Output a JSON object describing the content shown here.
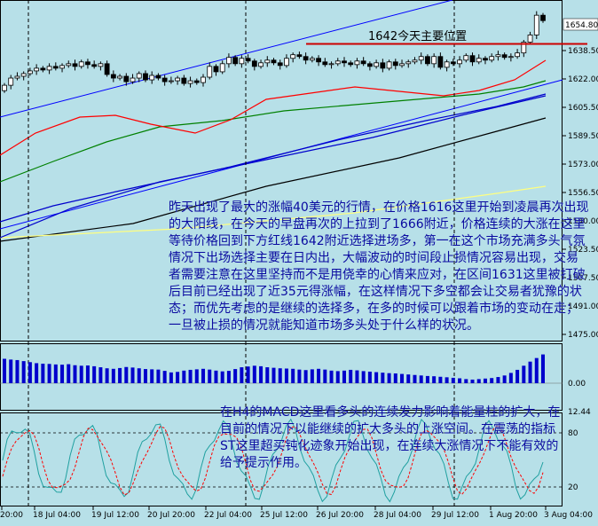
{
  "chart_data": {
    "type": "candlestick",
    "current_price": "1654.80",
    "annotation_label": "1642今天主要位置",
    "y_ticks": [
      "1654.80",
      "1638.50",
      "1622.00",
      "1605.50",
      "1589.50",
      "1573.00",
      "1556.50",
      "1540.00",
      "1523.50",
      "1507.50",
      "1491.00",
      "1475.00"
    ],
    "x_ticks": [
      "20:00",
      "18 Jul 04:00",
      "19 Jul 12:00",
      "20 Jul 20:00",
      "22 Jul 04:00",
      "25 Jul 12:00",
      "26 Jul 20:00",
      "28 Jul 04:00",
      "29 Jul 12:00",
      "1 Aug 20:00",
      "3 Aug 04:00"
    ],
    "macd_ticks": [
      "12.44",
      "0.00"
    ],
    "stoch_ticks": [
      "80",
      "20"
    ],
    "colors": {
      "background": "#b7e0e8",
      "channel": "#0000ff",
      "ma_fast": "#ff0000",
      "ma_mid": "#008000",
      "ma_blue": "#0000cc",
      "ma_slow": "#000000",
      "ma_yellow": "#ffff80",
      "support_line": "#cc0000",
      "macd_bar": "#0000cc",
      "stoch_main": "#20a0a0",
      "stoch_signal": "#ff0000",
      "note_text": "#0a0aa0"
    }
  },
  "notes": {
    "main_text": "昨天出现了最大的涨幅40美元的行情，在价格1616这里开始到凌晨再次出现的大阳线，在今天的早盘再次的上拉到了1666附近，价格连续的大涨在这里等待价格回到下方红线1642附近选择进场多，第一在这个市场充满多头气氛情况下出场选择主要在日内出，大幅波动的时间段止损情况容易出现，交易者需要注意在这里坚持而不是用侥幸的心情来应对，在区间1631这里被打破后目前已经出现了近35元得涨幅，在这样情况下多空都会让交易者犹豫的状态；而优先考虑的是继续的选择多，在多的时候可以跟着市场的变动在走；一旦被止损的情况就能知道市场多头处于什么样的状况。",
    "indicator_text": "在H4的MACD这里看多头的连续发力影响着能量柱的扩大，在目前的情况下以能继续的扩大多头的上涨空间。在震荡的指标ST这里超买钝化迹象开始出现，在连续大涨情况下不能有效的给予提示作用。"
  }
}
